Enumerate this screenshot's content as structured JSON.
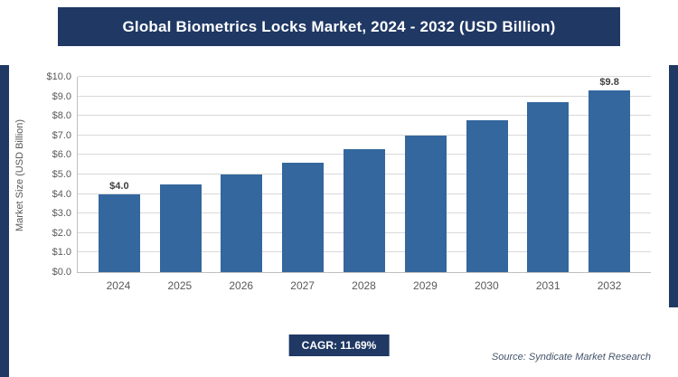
{
  "header": {
    "title": "Global Biometrics Locks Market, 2024 - 2032 (USD Billion)"
  },
  "chart_data": {
    "type": "bar",
    "title": "Global Biometrics Locks Market, 2024 - 2032 (USD Billion)",
    "categories": [
      "2024",
      "2025",
      "2026",
      "2027",
      "2028",
      "2029",
      "2030",
      "2031",
      "2032"
    ],
    "values": [
      4.0,
      4.5,
      5.0,
      5.6,
      6.3,
      7.0,
      7.8,
      8.7,
      9.8
    ],
    "data_labels": [
      "$4.0",
      "",
      "",
      "",
      "",
      "",
      "",
      "",
      "$9.8"
    ],
    "xlabel": "",
    "ylabel": "Market Size (USD Billion)",
    "ylim": [
      0,
      10
    ],
    "ytick_step": 1,
    "ytick_prefix": "$",
    "ytick_decimals": 1,
    "grid": true,
    "legend": false
  },
  "footer": {
    "cagr_label": "CAGR: 11.69%",
    "source": "Source: Syndicate Market Research"
  },
  "colors": {
    "banner": "#1f3864",
    "bar": "#33679e",
    "grid": "#d9d9d9",
    "axis": "#bfbfbf",
    "tick_text": "#595959",
    "source_text": "#44546a"
  }
}
